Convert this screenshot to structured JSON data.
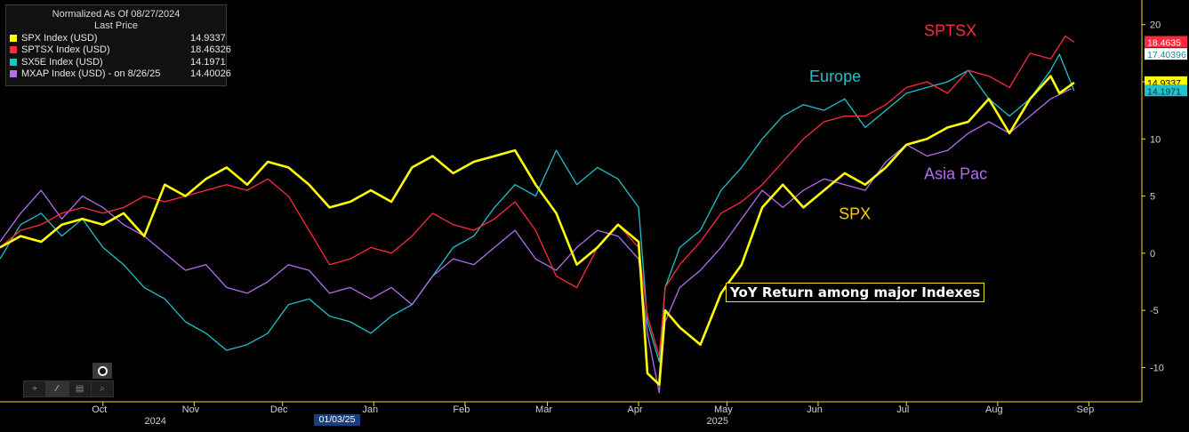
{
  "legend": {
    "header_line1": "Normalized As Of 08/27/2024",
    "header_line2": "Last Price",
    "items": [
      {
        "name": "SPX Index (USD)",
        "value": "14.9337",
        "color": "#ffff00"
      },
      {
        "name": "SPTSX Index (USD)",
        "value": "18.46326",
        "color": "#ff2b3d"
      },
      {
        "name": "SX5E Index (USD)",
        "value": "14.1971",
        "color": "#1fc2c8"
      },
      {
        "name": "MXAP Index (USD) -  on 8/26/25",
        "value": "14.40026",
        "color": "#b36cf0"
      }
    ]
  },
  "title": "YoY Return among major Indexes",
  "toolbar": {
    "icons": [
      "crosshair-icon",
      "pen-icon",
      "table-icon",
      "zoom-icon"
    ],
    "glyphs": [
      "⌖",
      "∕",
      "▤",
      "⌕"
    ],
    "record_icon": "record-icon"
  },
  "date_marker": "01/03/25",
  "chart_data": {
    "type": "line",
    "title": "YoY Return among major Indexes",
    "x_domain": [
      "2024-08-27",
      "2025-09-19"
    ],
    "ylim": [
      -13,
      22
    ],
    "y_ticks": [
      -10,
      -5,
      0,
      5,
      10,
      15,
      20
    ],
    "x_ticks": [
      {
        "label": "Oct",
        "date": "2024-10-01"
      },
      {
        "label": "Nov",
        "date": "2024-11-01"
      },
      {
        "label": "Dec",
        "date": "2024-12-01"
      },
      {
        "label": "Jan",
        "date": "2025-01-01"
      },
      {
        "label": "Feb",
        "date": "2025-02-01"
      },
      {
        "label": "Mar",
        "date": "2025-03-01"
      },
      {
        "label": "Apr",
        "date": "2025-04-01"
      },
      {
        "label": "May",
        "date": "2025-05-01"
      },
      {
        "label": "Jun",
        "date": "2025-06-01"
      },
      {
        "label": "Jul",
        "date": "2025-07-01"
      },
      {
        "label": "Aug",
        "date": "2025-08-01"
      },
      {
        "label": "Sep",
        "date": "2025-09-01"
      }
    ],
    "year_labels": [
      {
        "label": "2024",
        "date": "2024-10-20"
      },
      {
        "label": "2025",
        "date": "2025-04-29"
      }
    ],
    "grid": false,
    "legend_position": "top-left",
    "series": [
      {
        "name": "SX5E Index (USD)",
        "color": "#1fc2c8",
        "points": [
          [
            "2024-08-27",
            -0.5
          ],
          [
            "2024-09-03",
            2.5
          ],
          [
            "2024-09-10",
            3.5
          ],
          [
            "2024-09-17",
            1.5
          ],
          [
            "2024-09-24",
            3.0
          ],
          [
            "2024-10-01",
            0.5
          ],
          [
            "2024-10-08",
            -1.0
          ],
          [
            "2024-10-15",
            -3.0
          ],
          [
            "2024-10-22",
            -4.0
          ],
          [
            "2024-10-29",
            -6.0
          ],
          [
            "2024-11-05",
            -7.0
          ],
          [
            "2024-11-12",
            -8.5
          ],
          [
            "2024-11-19",
            -8.0
          ],
          [
            "2024-11-26",
            -7.0
          ],
          [
            "2024-12-03",
            -4.5
          ],
          [
            "2024-12-10",
            -4.0
          ],
          [
            "2024-12-17",
            -5.5
          ],
          [
            "2024-12-24",
            -6.0
          ],
          [
            "2024-12-31",
            -7.0
          ],
          [
            "2025-01-07",
            -5.5
          ],
          [
            "2025-01-14",
            -4.5
          ],
          [
            "2025-01-21",
            -2.0
          ],
          [
            "2025-01-28",
            0.5
          ],
          [
            "2025-02-04",
            1.5
          ],
          [
            "2025-02-11",
            4.0
          ],
          [
            "2025-02-18",
            6.0
          ],
          [
            "2025-02-25",
            5.0
          ],
          [
            "2025-03-04",
            9.0
          ],
          [
            "2025-03-11",
            6.0
          ],
          [
            "2025-03-18",
            7.5
          ],
          [
            "2025-03-25",
            6.5
          ],
          [
            "2025-04-01",
            4.0
          ],
          [
            "2025-04-04",
            -6.0
          ],
          [
            "2025-04-08",
            -9.5
          ],
          [
            "2025-04-10",
            -3.0
          ],
          [
            "2025-04-15",
            0.5
          ],
          [
            "2025-04-22",
            2.0
          ],
          [
            "2025-04-29",
            5.5
          ],
          [
            "2025-05-06",
            7.5
          ],
          [
            "2025-05-13",
            10.0
          ],
          [
            "2025-05-20",
            12.0
          ],
          [
            "2025-05-27",
            13.0
          ],
          [
            "2025-06-03",
            12.5
          ],
          [
            "2025-06-10",
            13.5
          ],
          [
            "2025-06-17",
            11.0
          ],
          [
            "2025-06-24",
            12.5
          ],
          [
            "2025-07-01",
            14.0
          ],
          [
            "2025-07-08",
            14.5
          ],
          [
            "2025-07-15",
            15.0
          ],
          [
            "2025-07-22",
            16.0
          ],
          [
            "2025-07-29",
            13.5
          ],
          [
            "2025-08-05",
            12.0
          ],
          [
            "2025-08-12",
            13.5
          ],
          [
            "2025-08-19",
            16.0
          ],
          [
            "2025-08-22",
            17.4
          ],
          [
            "2025-08-27",
            14.2
          ]
        ]
      },
      {
        "name": "MXAP Index (USD) -  on 8/26/25",
        "color": "#b36cf0",
        "points": [
          [
            "2024-08-27",
            1.0
          ],
          [
            "2024-09-03",
            3.5
          ],
          [
            "2024-09-10",
            5.5
          ],
          [
            "2024-09-17",
            3.0
          ],
          [
            "2024-09-24",
            5.0
          ],
          [
            "2024-10-01",
            4.0
          ],
          [
            "2024-10-08",
            2.5
          ],
          [
            "2024-10-15",
            1.5
          ],
          [
            "2024-10-22",
            0.0
          ],
          [
            "2024-10-29",
            -1.5
          ],
          [
            "2024-11-05",
            -1.0
          ],
          [
            "2024-11-12",
            -3.0
          ],
          [
            "2024-11-19",
            -3.5
          ],
          [
            "2024-11-26",
            -2.5
          ],
          [
            "2024-12-03",
            -1.0
          ],
          [
            "2024-12-10",
            -1.5
          ],
          [
            "2024-12-17",
            -3.5
          ],
          [
            "2024-12-24",
            -3.0
          ],
          [
            "2024-12-31",
            -4.0
          ],
          [
            "2025-01-07",
            -3.0
          ],
          [
            "2025-01-14",
            -4.5
          ],
          [
            "2025-01-21",
            -2.0
          ],
          [
            "2025-01-28",
            -0.5
          ],
          [
            "2025-02-04",
            -1.0
          ],
          [
            "2025-02-11",
            0.5
          ],
          [
            "2025-02-18",
            2.0
          ],
          [
            "2025-02-25",
            -0.5
          ],
          [
            "2025-03-04",
            -1.5
          ],
          [
            "2025-03-11",
            0.5
          ],
          [
            "2025-03-18",
            2.0
          ],
          [
            "2025-03-25",
            1.5
          ],
          [
            "2025-04-01",
            -0.5
          ],
          [
            "2025-04-04",
            -7.0
          ],
          [
            "2025-04-08",
            -12.2
          ],
          [
            "2025-04-10",
            -6.0
          ],
          [
            "2025-04-15",
            -3.0
          ],
          [
            "2025-04-22",
            -1.5
          ],
          [
            "2025-04-29",
            0.5
          ],
          [
            "2025-05-06",
            3.0
          ],
          [
            "2025-05-13",
            5.5
          ],
          [
            "2025-05-20",
            4.0
          ],
          [
            "2025-05-27",
            5.5
          ],
          [
            "2025-06-03",
            6.5
          ],
          [
            "2025-06-10",
            6.0
          ],
          [
            "2025-06-17",
            5.5
          ],
          [
            "2025-06-24",
            8.0
          ],
          [
            "2025-07-01",
            9.5
          ],
          [
            "2025-07-08",
            8.5
          ],
          [
            "2025-07-15",
            9.0
          ],
          [
            "2025-07-22",
            10.5
          ],
          [
            "2025-07-29",
            11.5
          ],
          [
            "2025-08-05",
            10.5
          ],
          [
            "2025-08-12",
            12.0
          ],
          [
            "2025-08-19",
            13.5
          ],
          [
            "2025-08-26",
            14.4
          ]
        ]
      },
      {
        "name": "SPTSX Index (USD)",
        "color": "#ff2b3d",
        "points": [
          [
            "2024-08-27",
            0.5
          ],
          [
            "2024-09-03",
            2.0
          ],
          [
            "2024-09-10",
            2.5
          ],
          [
            "2024-09-17",
            3.5
          ],
          [
            "2024-09-24",
            4.0
          ],
          [
            "2024-10-01",
            3.5
          ],
          [
            "2024-10-08",
            4.0
          ],
          [
            "2024-10-15",
            5.0
          ],
          [
            "2024-10-22",
            4.5
          ],
          [
            "2024-10-29",
            5.0
          ],
          [
            "2024-11-05",
            5.5
          ],
          [
            "2024-11-12",
            6.0
          ],
          [
            "2024-11-19",
            5.5
          ],
          [
            "2024-11-26",
            6.5
          ],
          [
            "2024-12-03",
            5.0
          ],
          [
            "2024-12-10",
            2.0
          ],
          [
            "2024-12-17",
            -1.0
          ],
          [
            "2024-12-24",
            -0.5
          ],
          [
            "2024-12-31",
            0.5
          ],
          [
            "2025-01-07",
            0.0
          ],
          [
            "2025-01-14",
            1.5
          ],
          [
            "2025-01-21",
            3.5
          ],
          [
            "2025-01-28",
            2.5
          ],
          [
            "2025-02-04",
            2.0
          ],
          [
            "2025-02-11",
            3.0
          ],
          [
            "2025-02-18",
            4.5
          ],
          [
            "2025-02-25",
            2.0
          ],
          [
            "2025-03-04",
            -2.0
          ],
          [
            "2025-03-11",
            -3.0
          ],
          [
            "2025-03-18",
            0.5
          ],
          [
            "2025-03-25",
            2.5
          ],
          [
            "2025-04-01",
            0.5
          ],
          [
            "2025-04-04",
            -5.5
          ],
          [
            "2025-04-08",
            -9.0
          ],
          [
            "2025-04-10",
            -3.0
          ],
          [
            "2025-04-15",
            -1.0
          ],
          [
            "2025-04-22",
            1.0
          ],
          [
            "2025-04-29",
            3.5
          ],
          [
            "2025-05-06",
            4.5
          ],
          [
            "2025-05-13",
            6.0
          ],
          [
            "2025-05-20",
            8.0
          ],
          [
            "2025-05-27",
            10.0
          ],
          [
            "2025-06-03",
            11.5
          ],
          [
            "2025-06-10",
            12.0
          ],
          [
            "2025-06-17",
            12.0
          ],
          [
            "2025-06-24",
            13.0
          ],
          [
            "2025-07-01",
            14.5
          ],
          [
            "2025-07-08",
            15.0
          ],
          [
            "2025-07-15",
            14.0
          ],
          [
            "2025-07-22",
            16.0
          ],
          [
            "2025-07-29",
            15.5
          ],
          [
            "2025-08-05",
            14.5
          ],
          [
            "2025-08-12",
            17.5
          ],
          [
            "2025-08-19",
            17.0
          ],
          [
            "2025-08-24",
            19.0
          ],
          [
            "2025-08-27",
            18.46
          ]
        ]
      },
      {
        "name": "SPX Index (USD)",
        "color": "#ffff00",
        "points": [
          [
            "2024-08-27",
            0.5
          ],
          [
            "2024-09-03",
            1.5
          ],
          [
            "2024-09-10",
            1.0
          ],
          [
            "2024-09-17",
            2.5
          ],
          [
            "2024-09-24",
            3.0
          ],
          [
            "2024-10-01",
            2.5
          ],
          [
            "2024-10-08",
            3.5
          ],
          [
            "2024-10-15",
            1.5
          ],
          [
            "2024-10-22",
            6.0
          ],
          [
            "2024-10-29",
            5.0
          ],
          [
            "2024-11-05",
            6.5
          ],
          [
            "2024-11-12",
            7.5
          ],
          [
            "2024-11-19",
            6.0
          ],
          [
            "2024-11-26",
            8.0
          ],
          [
            "2024-12-03",
            7.5
          ],
          [
            "2024-12-10",
            6.0
          ],
          [
            "2024-12-17",
            4.0
          ],
          [
            "2024-12-24",
            4.5
          ],
          [
            "2024-12-31",
            5.5
          ],
          [
            "2025-01-07",
            4.5
          ],
          [
            "2025-01-14",
            7.5
          ],
          [
            "2025-01-21",
            8.5
          ],
          [
            "2025-01-28",
            7.0
          ],
          [
            "2025-02-04",
            8.0
          ],
          [
            "2025-02-11",
            8.5
          ],
          [
            "2025-02-18",
            9.0
          ],
          [
            "2025-02-25",
            6.0
          ],
          [
            "2025-03-04",
            3.5
          ],
          [
            "2025-03-11",
            -1.0
          ],
          [
            "2025-03-18",
            0.5
          ],
          [
            "2025-03-25",
            2.5
          ],
          [
            "2025-04-01",
            1.0
          ],
          [
            "2025-04-04",
            -10.5
          ],
          [
            "2025-04-08",
            -11.5
          ],
          [
            "2025-04-10",
            -5.0
          ],
          [
            "2025-04-15",
            -6.5
          ],
          [
            "2025-04-22",
            -8.0
          ],
          [
            "2025-04-29",
            -3.5
          ],
          [
            "2025-05-06",
            -1.0
          ],
          [
            "2025-05-13",
            4.0
          ],
          [
            "2025-05-20",
            6.0
          ],
          [
            "2025-05-27",
            4.0
          ],
          [
            "2025-06-03",
            5.5
          ],
          [
            "2025-06-10",
            7.0
          ],
          [
            "2025-06-17",
            6.0
          ],
          [
            "2025-06-24",
            7.5
          ],
          [
            "2025-07-01",
            9.5
          ],
          [
            "2025-07-08",
            10.0
          ],
          [
            "2025-07-15",
            11.0
          ],
          [
            "2025-07-22",
            11.5
          ],
          [
            "2025-07-29",
            13.5
          ],
          [
            "2025-08-05",
            10.5
          ],
          [
            "2025-08-12",
            13.5
          ],
          [
            "2025-08-19",
            15.5
          ],
          [
            "2025-08-22",
            14.0
          ],
          [
            "2025-08-27",
            14.93
          ]
        ]
      }
    ],
    "annotations": [
      {
        "text": "SPTSX",
        "color": "#ff2b3d",
        "date": "2025-07-07",
        "y": 19.0
      },
      {
        "text": "Europe",
        "color": "#1fc2c8",
        "date": "2025-05-29",
        "y": 15.0
      },
      {
        "text": "Asia Pac",
        "color": "#b36cf0",
        "date": "2025-07-07",
        "y": 6.5
      },
      {
        "text": "SPX",
        "color": "#ffcc00",
        "date": "2025-06-08",
        "y": 3.0
      }
    ],
    "last_value_tags": [
      {
        "text": "18.4635",
        "y": 18.46,
        "bg": "#ff2b3d",
        "fg": "#ffffff"
      },
      {
        "text": "17.40396",
        "y": 17.4,
        "bg": "#ffffff",
        "fg": "#1a8a8f"
      },
      {
        "text": "14.9337",
        "y": 14.93,
        "bg": "#ffff00",
        "fg": "#000000"
      },
      {
        "text": "14.1971",
        "y": 14.2,
        "bg": "#1fc2c8",
        "fg": "#0a3a3c"
      }
    ]
  }
}
